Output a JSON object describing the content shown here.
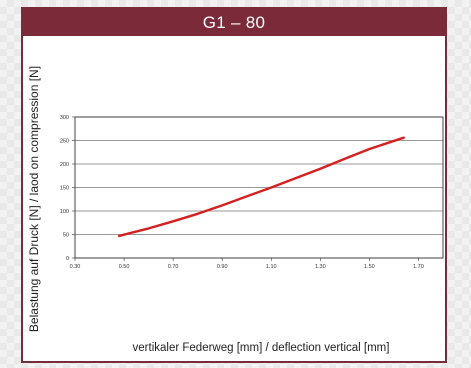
{
  "chart_data": {
    "type": "line",
    "title": "G1 – 80",
    "xlabel": "vertikaler Federweg [mm] / deflection vertical [mm]",
    "ylabel": "Belastung auf Druck [N] / laod on compression [N]",
    "xlim": [
      0.3,
      1.8
    ],
    "ylim": [
      0,
      300
    ],
    "x_ticks": [
      "0.30",
      "0.50",
      "0.70",
      "0.90",
      "1.10",
      "1.30",
      "1.50",
      "1.70"
    ],
    "y_ticks": [
      "0",
      "50",
      "100",
      "150",
      "200",
      "250",
      "300"
    ],
    "x_tick_values": [
      0.3,
      0.5,
      0.7,
      0.9,
      1.1,
      1.3,
      1.5,
      1.7
    ],
    "y_tick_values": [
      0,
      50,
      100,
      150,
      200,
      250,
      300
    ],
    "grid": "horizontal",
    "series": [
      {
        "color": "#d42020",
        "x": [
          0.48,
          0.6,
          0.7,
          0.8,
          0.9,
          1.0,
          1.1,
          1.2,
          1.3,
          1.4,
          1.5,
          1.64
        ],
        "y": [
          47,
          63,
          78,
          94,
          112,
          131,
          150,
          170,
          190,
          211,
          232,
          256
        ]
      }
    ]
  },
  "colors": {
    "header_bg": "#7b2a39",
    "frame_border": "#7b2a39",
    "line": "#d42020"
  }
}
